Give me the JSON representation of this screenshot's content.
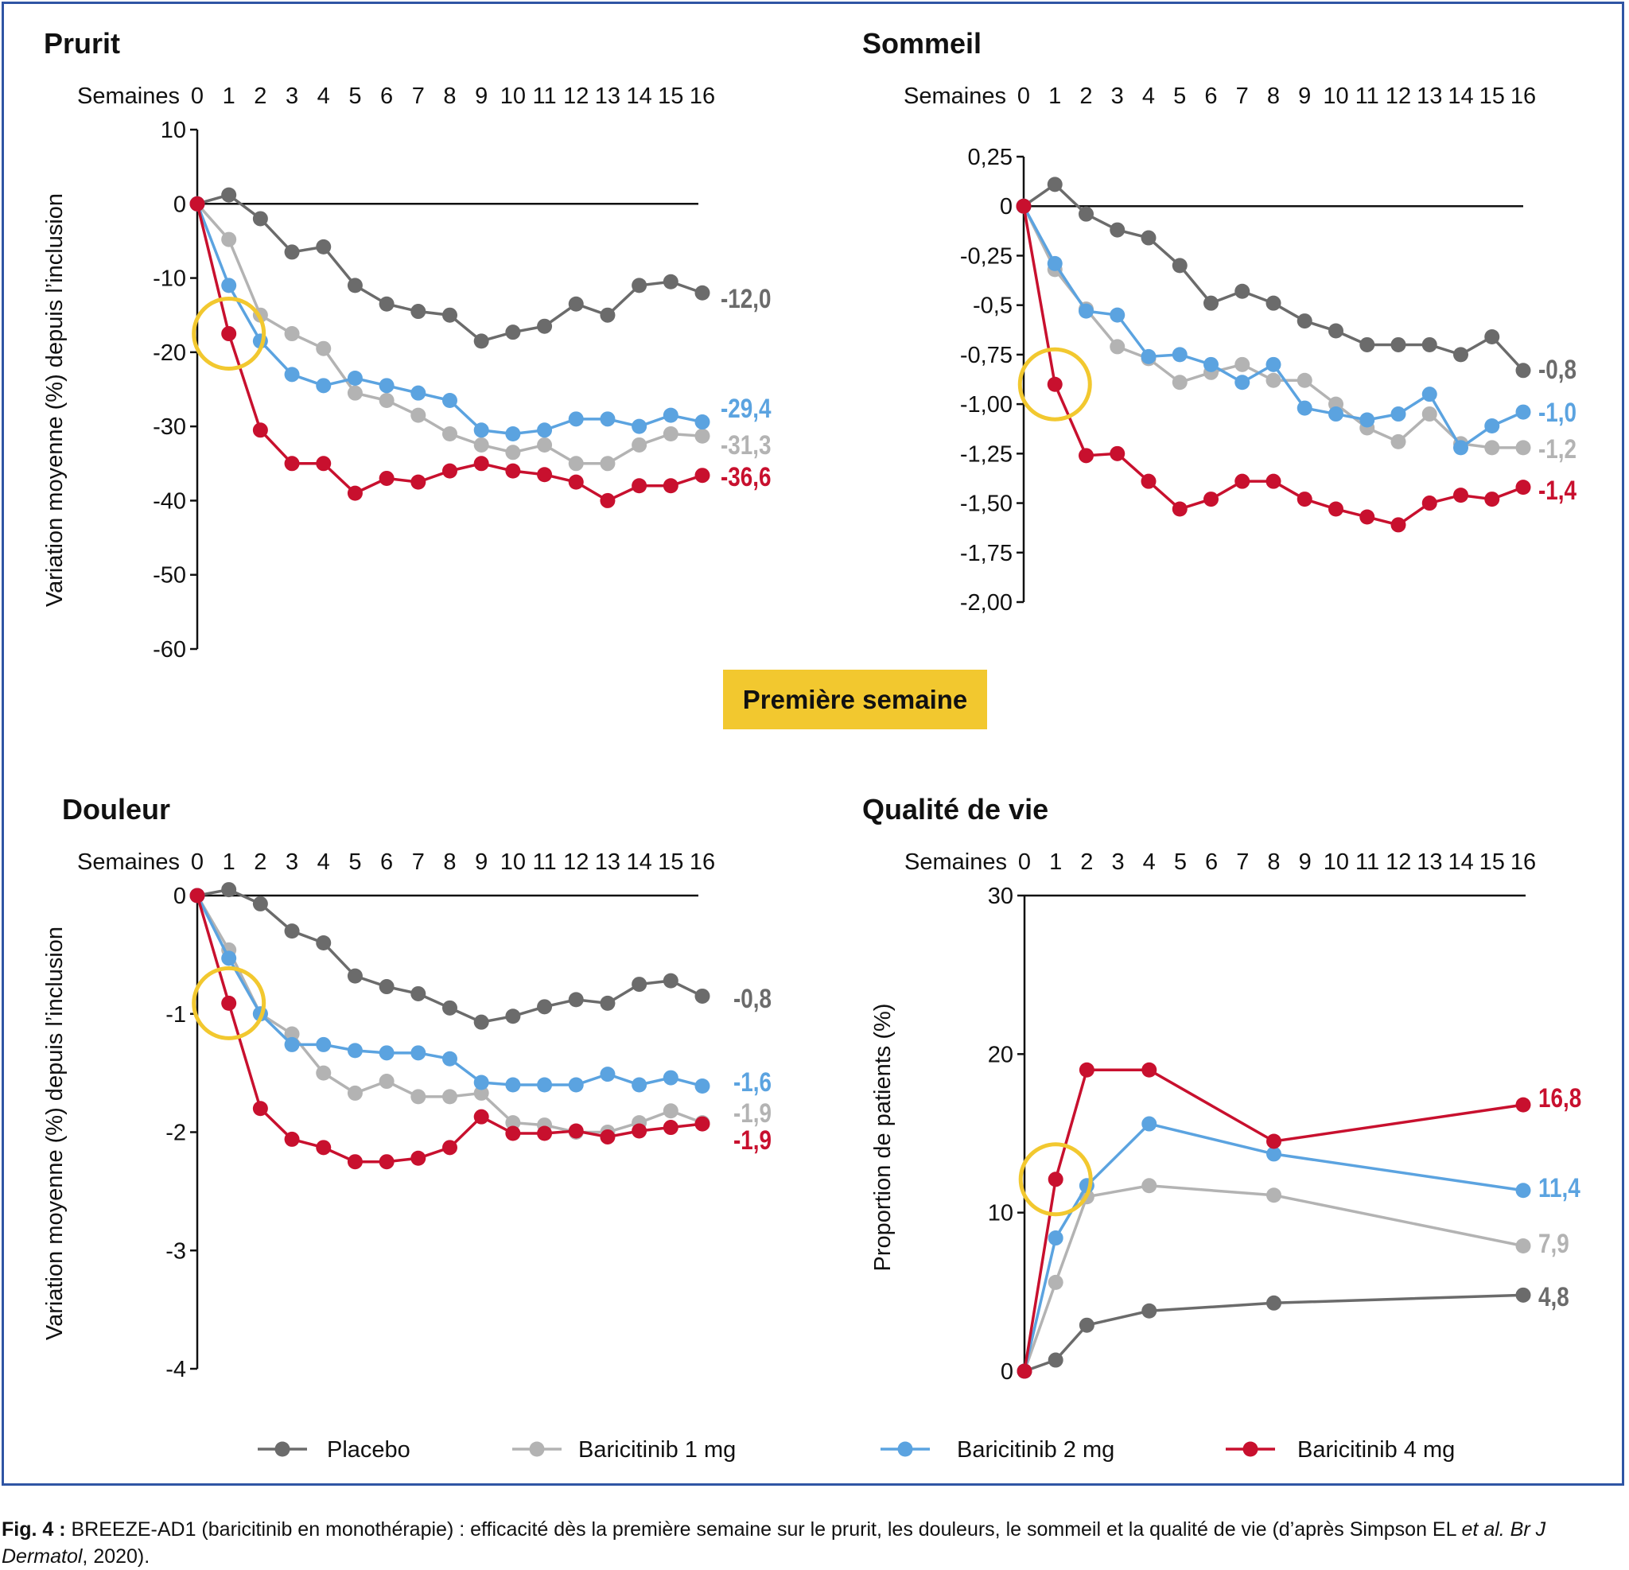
{
  "badge": "Première semaine",
  "caption": {
    "label": "Fig. 4 :",
    "text": " BREEZE-AD1 (baricitinib en monothérapie) : efficacité dès la première semaine sur le prurit, les douleurs, le sommeil et la qualité de vie (d’après Simpson EL ",
    "italic": "et al. Br J Dermatol",
    "end": ", 2020)."
  },
  "legend": [
    {
      "name": "Placebo",
      "color": "#6b6b6b"
    },
    {
      "name": "Baricitinib 1 mg",
      "color": "#b3b3b3"
    },
    {
      "name": "Baricitinib 2 mg",
      "color": "#5ba3e0"
    },
    {
      "name": "Baricitinib 4 mg",
      "color": "#c8102e"
    }
  ],
  "highlight_color": "#f2c82f",
  "chart_data": [
    {
      "type": "line",
      "title": "Prurit",
      "xlabel": "Semaines",
      "xticks": [
        "0",
        "1",
        "2",
        "3",
        "4",
        "5",
        "6",
        "7",
        "8",
        "9",
        "10",
        "11",
        "12",
        "13",
        "14",
        "15",
        "16"
      ],
      "ylabel": "Variation moyenne (%) depuis l’inclusion",
      "ylim": [
        -60,
        10
      ],
      "yticks": [
        {
          "v": 10,
          "t": "10"
        },
        {
          "v": 0,
          "t": "0"
        },
        {
          "v": -10,
          "t": "-10"
        },
        {
          "v": -20,
          "t": "-20"
        },
        {
          "v": -30,
          "t": "-30"
        },
        {
          "v": -40,
          "t": "-40"
        },
        {
          "v": -50,
          "t": "-50"
        },
        {
          "v": -60,
          "t": "-60"
        }
      ],
      "refline": 0,
      "x": [
        0,
        1,
        2,
        3,
        4,
        5,
        6,
        7,
        8,
        9,
        10,
        11,
        12,
        13,
        14,
        15,
        16
      ],
      "series": [
        {
          "name": "Placebo",
          "values": [
            0,
            1.2,
            -2,
            -6.5,
            -5.8,
            -11,
            -13.5,
            -14.5,
            -15,
            -18.5,
            -17.3,
            -16.5,
            -13.5,
            -15,
            -11,
            -10.5,
            -12.0
          ],
          "end_label": "-12,0"
        },
        {
          "name": "Baricitinib 1 mg",
          "values": [
            0,
            -4.8,
            -15,
            -17.5,
            -19.5,
            -25.5,
            -26.5,
            -28.5,
            -31,
            -32.5,
            -33.5,
            -32.5,
            -35,
            -35,
            -32.5,
            -31,
            -31.3
          ],
          "end_label": "-31,3"
        },
        {
          "name": "Baricitinib 2 mg",
          "values": [
            0,
            -11,
            -18.5,
            -23,
            -24.5,
            -23.5,
            -24.5,
            -25.5,
            -26.5,
            -30.5,
            -31,
            -30.5,
            -29,
            -29,
            -30,
            -28.5,
            -29.4
          ],
          "end_label": "-29,4"
        },
        {
          "name": "Baricitinib 4 mg",
          "values": [
            0,
            -17.5,
            -30.5,
            -35,
            -35,
            -39,
            -37,
            -37.5,
            -36,
            -35,
            -36,
            -36.5,
            -37.5,
            -40,
            -38,
            -38,
            -36.6
          ],
          "end_label": "-36,6"
        }
      ],
      "highlight": {
        "series": "Baricitinib 4 mg",
        "x": 1
      }
    },
    {
      "type": "line",
      "title": "Sommeil",
      "xlabel": "Semaines",
      "xticks": [
        "0",
        "1",
        "2",
        "3",
        "4",
        "5",
        "6",
        "7",
        "8",
        "9",
        "10",
        "11",
        "12",
        "13",
        "14",
        "15",
        "16"
      ],
      "ylabel": "",
      "ylim": [
        -2.0,
        0.25
      ],
      "yticks": [
        {
          "v": 0.25,
          "t": "0,25"
        },
        {
          "v": 0,
          "t": "0"
        },
        {
          "v": -0.25,
          "t": "-0,25"
        },
        {
          "v": -0.5,
          "t": "-0,5"
        },
        {
          "v": -0.75,
          "t": "-0,75"
        },
        {
          "v": -1.0,
          "t": "-1,00"
        },
        {
          "v": -1.25,
          "t": "-1,25"
        },
        {
          "v": -1.5,
          "t": "-1,50"
        },
        {
          "v": -1.75,
          "t": "-1,75"
        },
        {
          "v": -2.0,
          "t": "-2,00"
        }
      ],
      "refline": 0,
      "x": [
        0,
        1,
        2,
        3,
        4,
        5,
        6,
        7,
        8,
        9,
        10,
        11,
        12,
        13,
        14,
        15,
        16
      ],
      "series": [
        {
          "name": "Placebo",
          "values": [
            0,
            0.11,
            -0.04,
            -0.12,
            -0.16,
            -0.3,
            -0.49,
            -0.43,
            -0.49,
            -0.58,
            -0.63,
            -0.7,
            -0.7,
            -0.7,
            -0.75,
            -0.66,
            -0.83
          ],
          "end_label": "-0,8"
        },
        {
          "name": "Baricitinib 1 mg",
          "values": [
            0,
            -0.32,
            -0.52,
            -0.71,
            -0.77,
            -0.89,
            -0.84,
            -0.8,
            -0.88,
            -0.88,
            -1.0,
            -1.12,
            -1.19,
            -1.05,
            -1.2,
            -1.22,
            -1.22
          ],
          "end_label": "-1,2"
        },
        {
          "name": "Baricitinib 2 mg",
          "values": [
            0,
            -0.29,
            -0.53,
            -0.55,
            -0.76,
            -0.75,
            -0.8,
            -0.89,
            -0.8,
            -1.02,
            -1.05,
            -1.08,
            -1.05,
            -0.95,
            -1.22,
            -1.11,
            -1.04
          ],
          "end_label": "-1,0"
        },
        {
          "name": "Baricitinib 4 mg",
          "values": [
            0,
            -0.9,
            -1.26,
            -1.25,
            -1.39,
            -1.53,
            -1.48,
            -1.39,
            -1.39,
            -1.48,
            -1.53,
            -1.57,
            -1.61,
            -1.5,
            -1.46,
            -1.48,
            -1.42
          ],
          "end_label": "-1,4"
        }
      ],
      "highlight": {
        "series": "Baricitinib 4 mg",
        "x": 1
      }
    },
    {
      "type": "line",
      "title": "Douleur",
      "xlabel": "Semaines",
      "xticks": [
        "0",
        "1",
        "2",
        "3",
        "4",
        "5",
        "6",
        "7",
        "8",
        "9",
        "10",
        "11",
        "12",
        "13",
        "14",
        "15",
        "16"
      ],
      "ylabel": "Variation moyenne (%) depuis l’inclusion",
      "ylim": [
        -4,
        0
      ],
      "yticks": [
        {
          "v": 0,
          "t": "0"
        },
        {
          "v": -1,
          "t": "-1"
        },
        {
          "v": -2,
          "t": "-2"
        },
        {
          "v": -3,
          "t": "-3"
        },
        {
          "v": -4,
          "t": "-4"
        }
      ],
      "refline": 0,
      "x": [
        0,
        1,
        2,
        3,
        4,
        5,
        6,
        7,
        8,
        9,
        10,
        11,
        12,
        13,
        14,
        15,
        16
      ],
      "series": [
        {
          "name": "Placebo",
          "values": [
            0,
            0.05,
            -0.07,
            -0.3,
            -0.4,
            -0.68,
            -0.77,
            -0.83,
            -0.95,
            -1.07,
            -1.02,
            -0.94,
            -0.88,
            -0.91,
            -0.75,
            -0.72,
            -0.85
          ],
          "end_label": "-0,8"
        },
        {
          "name": "Baricitinib 1 mg",
          "values": [
            0,
            -0.46,
            -1.0,
            -1.17,
            -1.5,
            -1.67,
            -1.57,
            -1.7,
            -1.7,
            -1.67,
            -1.92,
            -1.94,
            -2.0,
            -2.0,
            -1.92,
            -1.82,
            -1.92
          ],
          "end_label": "-1,9"
        },
        {
          "name": "Baricitinib 2 mg",
          "values": [
            0,
            -0.53,
            -1.0,
            -1.26,
            -1.26,
            -1.31,
            -1.33,
            -1.33,
            -1.38,
            -1.58,
            -1.6,
            -1.6,
            -1.6,
            -1.51,
            -1.6,
            -1.54,
            -1.61
          ],
          "end_label": "-1,6"
        },
        {
          "name": "Baricitinib 4 mg",
          "values": [
            0,
            -0.91,
            -1.8,
            -2.06,
            -2.13,
            -2.25,
            -2.25,
            -2.22,
            -2.13,
            -1.87,
            -2.01,
            -2.01,
            -1.99,
            -2.04,
            -1.99,
            -1.96,
            -1.93
          ],
          "end_label": "-1,9"
        }
      ],
      "highlight": {
        "series": "Baricitinib 4 mg",
        "x": 1
      }
    },
    {
      "type": "line",
      "title": "Qualité de vie",
      "xlabel": "Semaines",
      "xticks": [
        "0",
        "1",
        "2",
        "3",
        "4",
        "5",
        "6",
        "7",
        "8",
        "9",
        "10",
        "11",
        "12",
        "13",
        "14",
        "15",
        "16"
      ],
      "ylabel": "Proportion de patients (%)",
      "ylim": [
        0,
        30
      ],
      "yticks": [
        {
          "v": 30,
          "t": "30"
        },
        {
          "v": 20,
          "t": "20"
        },
        {
          "v": 10,
          "t": "10"
        },
        {
          "v": 0,
          "t": "0"
        }
      ],
      "refline": 30,
      "x": [
        0,
        1,
        2,
        4,
        8,
        16
      ],
      "series": [
        {
          "name": "Placebo",
          "values": [
            0,
            0.7,
            2.9,
            3.8,
            4.3,
            4.8
          ],
          "end_label": "4,8"
        },
        {
          "name": "Baricitinib 1 mg",
          "values": [
            0,
            5.6,
            11.0,
            11.7,
            11.1,
            7.9
          ],
          "end_label": "7,9"
        },
        {
          "name": "Baricitinib 2 mg",
          "values": [
            0,
            8.4,
            11.7,
            15.6,
            13.7,
            11.4
          ],
          "end_label": "11,4"
        },
        {
          "name": "Baricitinib 4 mg",
          "values": [
            0,
            12.1,
            19.0,
            19.0,
            14.5,
            16.8
          ],
          "end_label": "16,8"
        }
      ],
      "highlight": {
        "series": "Baricitinib 4 mg",
        "x": 1
      }
    }
  ]
}
